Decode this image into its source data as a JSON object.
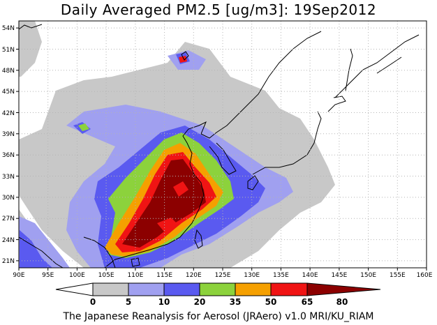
{
  "title": "Daily Averaged PM2.5 [ug/m3]: 19Sep2012",
  "footer": "The Japanese Reanalysis for Aerosol (JRAero) v1.0 MRI/KU_RIAM",
  "map": {
    "lon_labels": [
      "90E",
      "95E",
      "100E",
      "105E",
      "110E",
      "115E",
      "120E",
      "125E",
      "130E",
      "135E",
      "140E",
      "145E",
      "150E",
      "155E",
      "160E"
    ],
    "lat_labels": [
      "21N",
      "24N",
      "27N",
      "30N",
      "33N",
      "36N",
      "39N",
      "42N",
      "45N",
      "48N",
      "51N",
      "54N"
    ],
    "lon_range": [
      90,
      160
    ],
    "lat_range": [
      20,
      55
    ],
    "grid": "dotted"
  },
  "colorbar": {
    "labels": [
      "0",
      "5",
      "10",
      "20",
      "35",
      "50",
      "65",
      "80"
    ],
    "colors": [
      "#ffffff",
      "#c8c8c8",
      "#a0a0f0",
      "#5a5af0",
      "#8cd23c",
      "#f5a000",
      "#f01414",
      "#8c0000"
    ]
  }
}
